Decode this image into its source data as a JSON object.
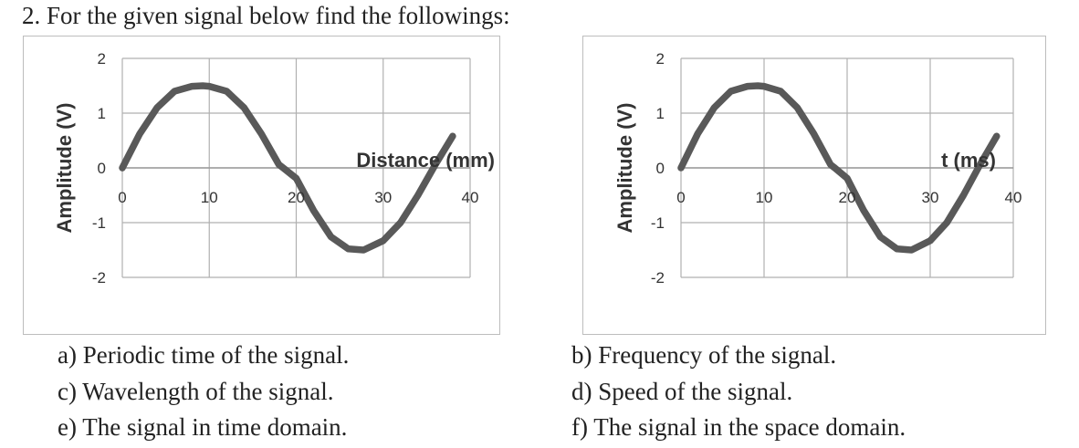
{
  "heading": "2. For the given signal below find the followings:",
  "chart_data": [
    {
      "type": "line",
      "ylabel": "Amplitude (V)",
      "xlabel": "Distance (mm)",
      "ylim": [
        -2,
        2
      ],
      "xlim": [
        0,
        40
      ],
      "yticks": [
        "2",
        "1",
        "0",
        "-1",
        "-2"
      ],
      "xticks": [
        "0",
        "10",
        "20",
        "30",
        "40"
      ],
      "grid": true,
      "series": [
        {
          "x": [
            0,
            2,
            4,
            6,
            8,
            9.25,
            10,
            12,
            14,
            16,
            18,
            18.5,
            20,
            22,
            24,
            26,
            27.75,
            30,
            32,
            34,
            36,
            38
          ],
          "y": [
            0,
            0.62,
            1.1,
            1.4,
            1.49,
            1.5,
            1.49,
            1.4,
            1.1,
            0.62,
            0.06,
            0,
            -0.19,
            -0.78,
            -1.26,
            -1.48,
            -1.5,
            -1.33,
            -1.0,
            -0.5,
            0.06,
            0.58
          ]
        }
      ],
      "line_color": "#595959"
    },
    {
      "type": "line",
      "ylabel": "Amplitude (V)",
      "xlabel": "t (ms)",
      "ylim": [
        -2,
        2
      ],
      "xlim": [
        0,
        40
      ],
      "yticks": [
        "2",
        "1",
        "0",
        "-1",
        "-2"
      ],
      "xticks": [
        "0",
        "10",
        "20",
        "30",
        "40"
      ],
      "grid": true,
      "series": [
        {
          "x": [
            0,
            2,
            4,
            6,
            8,
            9.25,
            10,
            12,
            14,
            16,
            18,
            18.5,
            20,
            22,
            24,
            26,
            27.75,
            30,
            32,
            34,
            36,
            38
          ],
          "y": [
            0,
            0.62,
            1.1,
            1.4,
            1.49,
            1.5,
            1.49,
            1.4,
            1.1,
            0.62,
            0.06,
            0,
            -0.19,
            -0.78,
            -1.26,
            -1.48,
            -1.5,
            -1.33,
            -1.0,
            -0.5,
            0.06,
            0.58
          ]
        }
      ],
      "line_color": "#595959"
    }
  ],
  "questions": {
    "a": "a)  Periodic time of the signal.",
    "b": "b) Frequency of the signal.",
    "c": "c) Wavelength of the signal.",
    "d": "d) Speed of the signal.",
    "e": "e) The signal in time domain.",
    "f": "f) The signal in the space domain."
  }
}
